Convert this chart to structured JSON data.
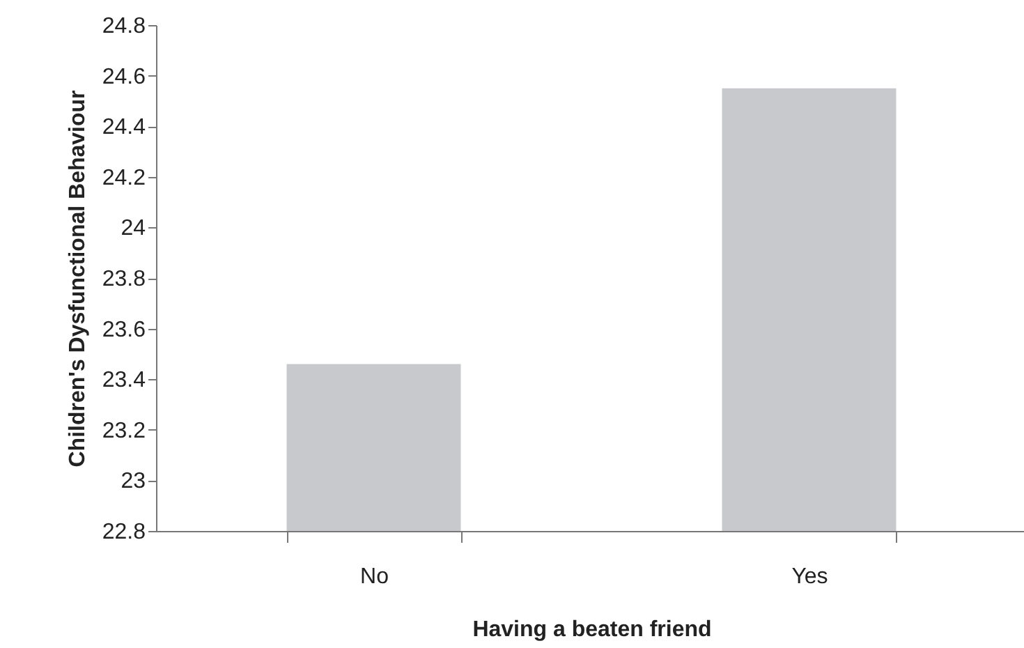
{
  "chart_data": {
    "type": "bar",
    "xlabel": "Having a beaten friend",
    "ylabel": "Children's Dysfunctional Behaviour",
    "categories": [
      "No",
      "Yes"
    ],
    "values": [
      23.46,
      24.55
    ],
    "color": "#c8c9cd",
    "ylim": [
      22.8,
      24.8
    ],
    "yticks": [
      22.8,
      23,
      23.2,
      23.4,
      23.6,
      23.8,
      24,
      24.2,
      24.4,
      24.6,
      24.8
    ],
    "grid": false
  }
}
